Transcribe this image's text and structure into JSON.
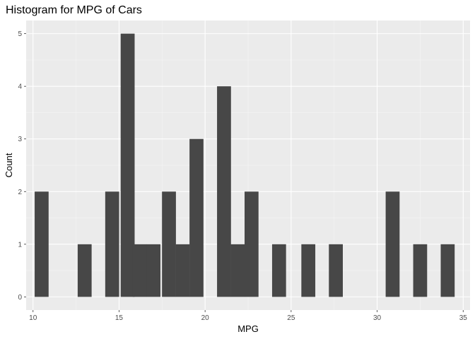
{
  "colors": {
    "panel_background": "#ebebeb",
    "grid_major": "#ffffff",
    "grid_minor": "#f5f5f5",
    "bar_fill": "#474747",
    "tick_color": "#333333"
  },
  "chart_data": {
    "type": "bar",
    "title": "Histogram for MPG of Cars",
    "xlabel": "MPG",
    "ylabel": "Count",
    "xlim": [
      9.6,
      35.4
    ],
    "ylim": [
      -0.25,
      5.25
    ],
    "x_ticks": [
      "10",
      "15",
      "20",
      "25",
      "30",
      "35"
    ],
    "y_ticks": [
      "0",
      "1",
      "2",
      "3",
      "4",
      "5"
    ],
    "bin_width": 0.81,
    "bins": [
      {
        "x": 10.5,
        "count": 2
      },
      {
        "x": 13.0,
        "count": 1
      },
      {
        "x": 14.6,
        "count": 2
      },
      {
        "x": 15.5,
        "count": 5
      },
      {
        "x": 16.2,
        "count": 1
      },
      {
        "x": 17.0,
        "count": 1
      },
      {
        "x": 17.9,
        "count": 2
      },
      {
        "x": 18.7,
        "count": 1
      },
      {
        "x": 19.5,
        "count": 3
      },
      {
        "x": 21.1,
        "count": 4
      },
      {
        "x": 21.9,
        "count": 1
      },
      {
        "x": 22.7,
        "count": 2
      },
      {
        "x": 24.3,
        "count": 1
      },
      {
        "x": 26.0,
        "count": 1
      },
      {
        "x": 27.6,
        "count": 1
      },
      {
        "x": 30.9,
        "count": 2
      },
      {
        "x": 32.5,
        "count": 1
      },
      {
        "x": 34.1,
        "count": 1
      }
    ],
    "grid": true,
    "legend": "none"
  }
}
